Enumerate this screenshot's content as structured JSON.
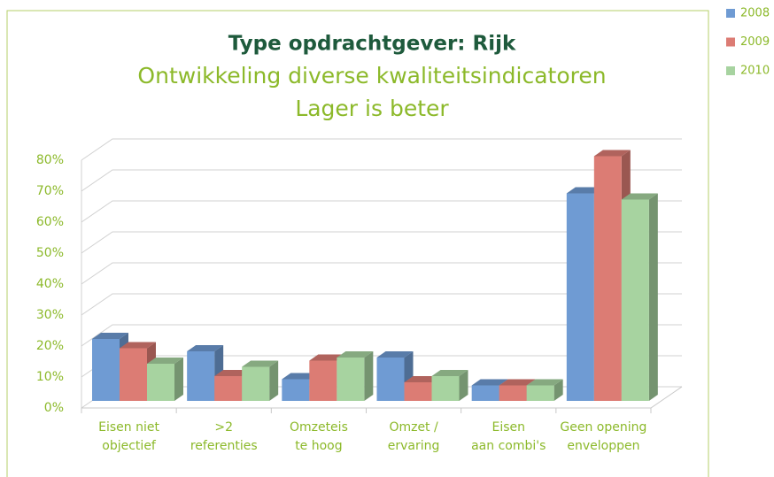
{
  "chart_data": {
    "type": "bar3d",
    "title": "Type opdrachtgever: Rijk",
    "subtitle": [
      "Ontwikkeling diverse kwaliteitsindicatoren",
      "Lager is beter"
    ],
    "categories": [
      [
        "Eisen niet",
        "objectief"
      ],
      [
        ">2",
        "referenties"
      ],
      [
        "Omzeteis",
        "te hoog"
      ],
      [
        "Omzet /",
        "ervaring"
      ],
      [
        "Eisen",
        "aan combi's"
      ],
      [
        "Geen opening",
        "enveloppen"
      ]
    ],
    "series": [
      {
        "name": "2008",
        "color": "#6f9bd3",
        "values": [
          20,
          16,
          7,
          14,
          5,
          67
        ]
      },
      {
        "name": "2009",
        "color": "#dc7c74",
        "values": [
          17,
          8,
          13,
          6,
          5,
          79
        ]
      },
      {
        "name": "2010",
        "color": "#a7d3a0",
        "values": [
          12,
          11,
          14,
          8,
          5,
          65
        ]
      }
    ],
    "ylim": [
      0,
      80
    ],
    "yticks": [
      {
        "value": 0,
        "label": "0%"
      },
      {
        "value": 10,
        "label": "10%"
      },
      {
        "value": 20,
        "label": "20%"
      },
      {
        "value": 30,
        "label": "30%"
      },
      {
        "value": 40,
        "label": "40%"
      },
      {
        "value": 50,
        "label": "50%"
      },
      {
        "value": 60,
        "label": "60%"
      },
      {
        "value": 70,
        "label": "70%"
      },
      {
        "value": 80,
        "label": "80%"
      }
    ],
    "grid": true,
    "legend": "top-right"
  }
}
